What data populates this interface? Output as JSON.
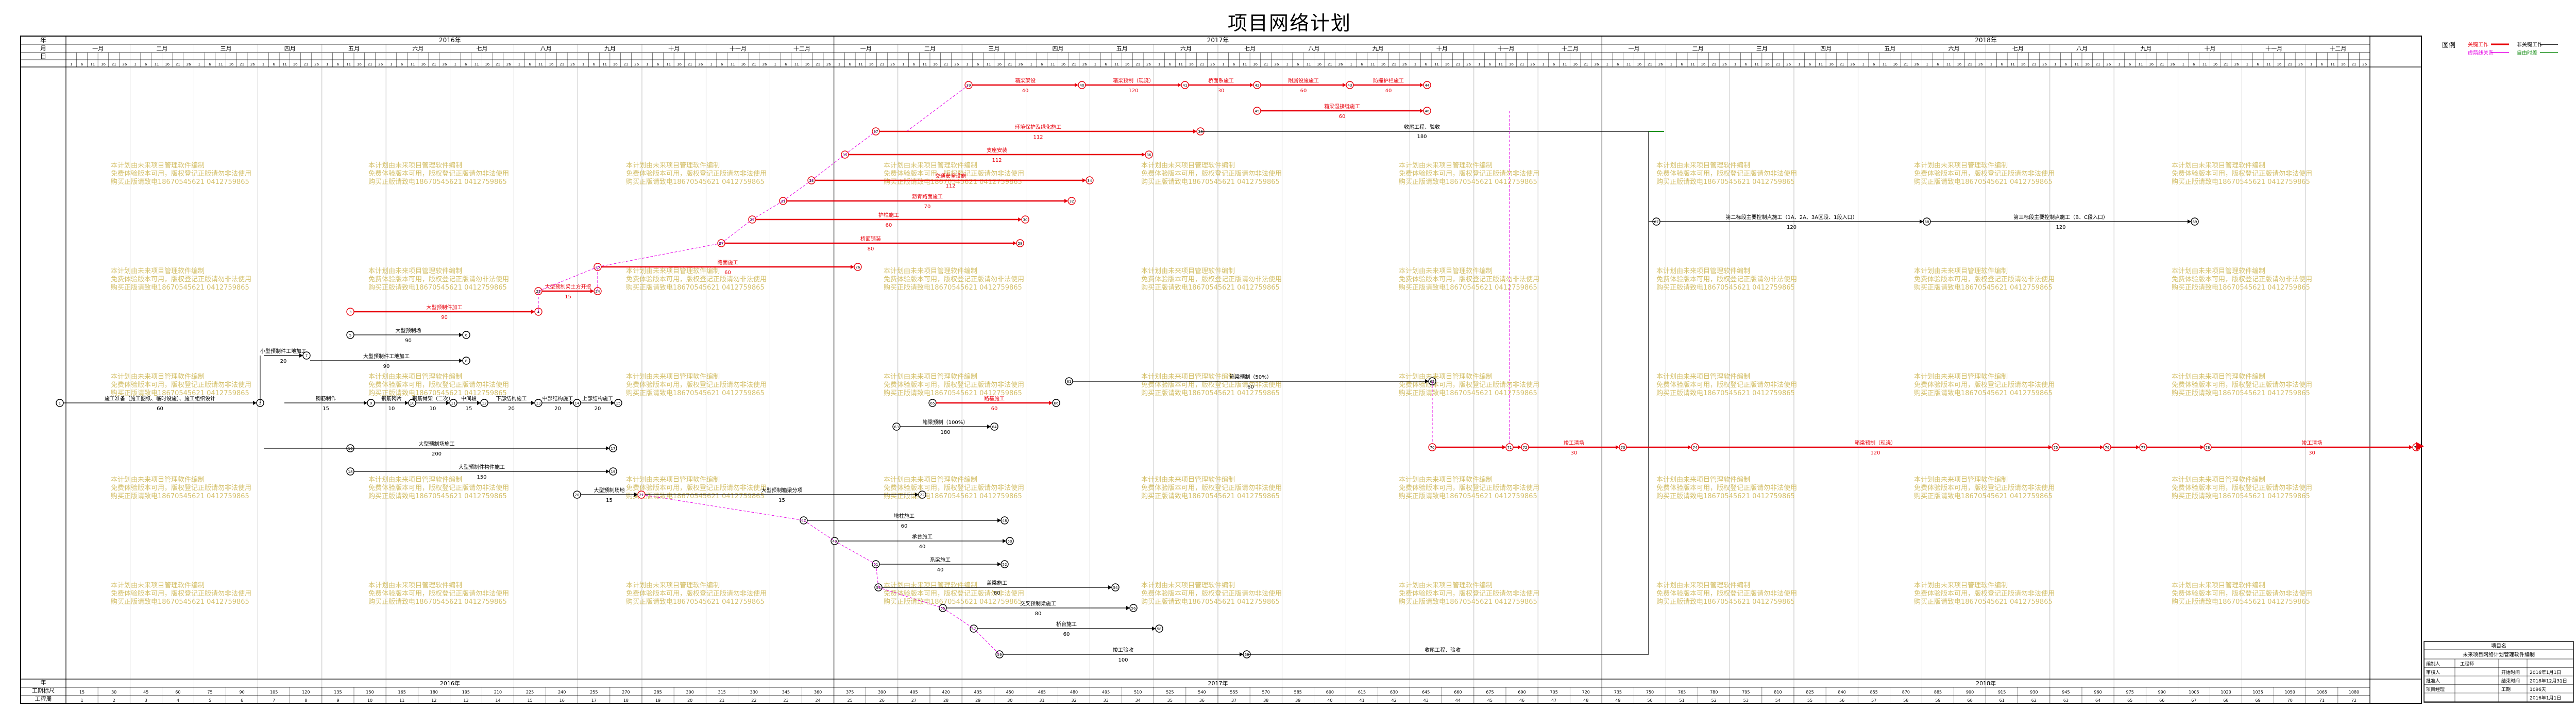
{
  "title": "项目网络计划",
  "timescale": {
    "year_row_label": "年",
    "month_row_label": "月",
    "day_row_label": "日",
    "years": [
      "2016年",
      "2017年",
      "2018年"
    ],
    "months_cycle": [
      "一月",
      "二月",
      "三月",
      "四月",
      "五月",
      "六月",
      "七月",
      "八月",
      "九月",
      "十月",
      "十一月",
      "十二月"
    ],
    "bottom_year_label": "年",
    "bottom_rows": [
      "工期标尺",
      "工程周"
    ]
  },
  "legend": {
    "title": "图例",
    "items": [
      {
        "label": "关键工作",
        "color": "#e8000b"
      },
      {
        "label": "虚箭线关系",
        "color": "#e600e6"
      },
      {
        "label": "非关键工作",
        "color": "#000000"
      },
      {
        "label": "自由时差",
        "color": "#1a8f1a"
      }
    ]
  },
  "watermark": {
    "lines": [
      "本计划由未来项目管理软件编制",
      "免费体验版本可用，版权登记正版请勿非法使用",
      "购买正版请致电18670545621 0412759865"
    ],
    "color": "#d4c06a"
  },
  "network": {
    "activities": [
      {
        "label": "施工准备（施工图纸、临时设施）、施工组织设计",
        "duration": "60",
        "critical": false
      },
      {
        "label": "小型预制件加工厂",
        "duration": "90",
        "critical": false
      },
      {
        "label": "大型预制件加工",
        "duration": "90",
        "critical": true
      },
      {
        "label": "大型预制场",
        "duration": "90",
        "critical": false
      },
      {
        "label": "小型预制件工地加工",
        "duration": "20",
        "critical": false
      },
      {
        "label": "大型预制件工地加工",
        "duration": "90",
        "critical": false
      },
      {
        "label": "钢筋制作",
        "duration": "15",
        "critical": false
      },
      {
        "label": "钢筋网片",
        "duration": "10",
        "critical": false
      },
      {
        "label": "钢筋骨架（二次）",
        "duration": "10",
        "critical": false
      },
      {
        "label": "中间段",
        "duration": "15",
        "critical": false
      },
      {
        "label": "下部结构施工",
        "duration": "20",
        "critical": false
      },
      {
        "label": "中部结构施工",
        "duration": "20",
        "critical": false
      },
      {
        "label": "上部结构施工",
        "duration": "20",
        "critical": false
      },
      {
        "label": "大型预制场施工",
        "duration": "200",
        "critical": false
      },
      {
        "label": "大型预制件构件施工",
        "duration": "150",
        "critical": false
      },
      {
        "label": "大型预制场地",
        "duration": "15",
        "critical": false
      },
      {
        "label": "大型预制箱梁分项",
        "duration": "15",
        "critical": false
      },
      {
        "label": "大型预制梁土方开挖",
        "duration": "15",
        "critical": true
      },
      {
        "label": "路面施工",
        "duration": "60",
        "critical": true
      },
      {
        "label": "桥面铺装",
        "duration": "80",
        "critical": true
      },
      {
        "label": "护栏施工",
        "duration": "60",
        "critical": true
      },
      {
        "label": "沥青路面施工",
        "duration": "70",
        "critical": true
      },
      {
        "label": "交通安全设施",
        "duration": "112",
        "critical": true
      },
      {
        "label": "支座安装",
        "duration": "112",
        "critical": true
      },
      {
        "label": "环境保护及绿化施工",
        "duration": "112",
        "critical": true
      },
      {
        "label": "竣工验收",
        "duration": "100",
        "critical": false
      },
      {
        "label": "墩柱施工",
        "duration": "60",
        "critical": false
      },
      {
        "label": "承台施工",
        "duration": "40",
        "critical": false
      },
      {
        "label": "系梁施工",
        "duration": "40",
        "critical": false
      },
      {
        "label": "盖梁施工",
        "duration": "60",
        "critical": false
      },
      {
        "label": "交叉预制梁施工",
        "duration": "80",
        "critical": false
      },
      {
        "label": "桥台施工",
        "duration": "60",
        "critical": false
      },
      {
        "label": "第二标段主要控制点施工（1A、2A、3A区段、1段入口）",
        "duration": "120",
        "critical": false
      },
      {
        "label": "第三标段主要控制点施工（B、C段入口）",
        "duration": "120",
        "critical": false
      },
      {
        "label": "箱梁预制（现浇）",
        "duration": "120",
        "critical": true
      },
      {
        "label": "箱梁架设",
        "duration": "40",
        "critical": true
      },
      {
        "label": "箱梁湿接缝施工",
        "duration": "60",
        "critical": true
      },
      {
        "label": "防撞护栏施工",
        "duration": "40",
        "critical": true
      },
      {
        "label": "箱梁预制（50%）",
        "duration": "60",
        "critical": false
      },
      {
        "label": "箱梁预制（100%）",
        "duration": "180",
        "critical": false
      },
      {
        "label": "路基施工",
        "duration": "60",
        "critical": true
      },
      {
        "label": "桥面系施工",
        "duration": "30",
        "critical": true
      },
      {
        "label": "附属设施施工",
        "duration": "60",
        "critical": true
      },
      {
        "label": "收尾工程、验收",
        "duration": "180",
        "critical": false
      },
      {
        "label": "竣工清场",
        "duration": "30",
        "critical": true
      }
    ]
  },
  "title_block": {
    "header": "项目名",
    "project": "未来项目网络计划管理软件编制",
    "rows": [
      {
        "k": "编制人",
        "v": "工程师",
        "k2": "",
        "v2": ""
      },
      {
        "k": "审核人",
        "v": "",
        "k2": "开始时间",
        "v2": "2016年1月1日"
      },
      {
        "k": "批准人",
        "v": "",
        "k2": "结束时间",
        "v2": "2018年12月31日"
      },
      {
        "k": "项目经理",
        "v": "",
        "k2": "工期",
        "v2": "1096天"
      },
      {
        "k": "",
        "v": "",
        "k2": "",
        "v2": "2016年1月1日"
      }
    ]
  }
}
